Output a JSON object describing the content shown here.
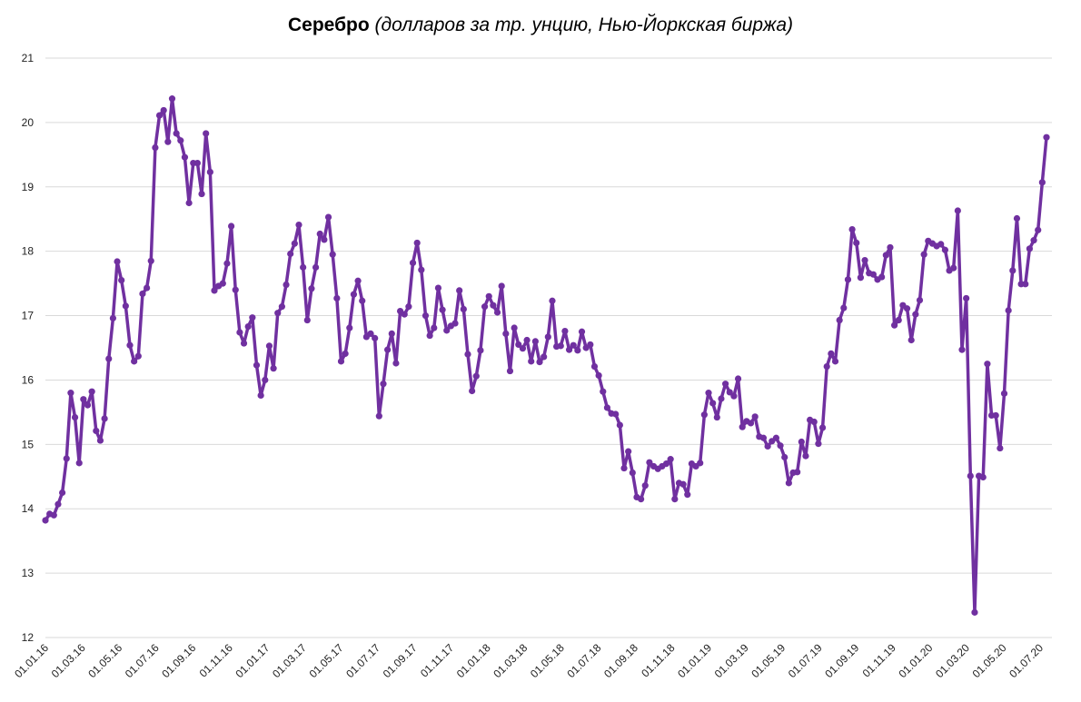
{
  "chart_data": {
    "type": "line",
    "title_bold": "Серебро",
    "title_italic": "(долларов за тр. унцию, Нью-Йоркская биржа)",
    "xlabel": "",
    "ylabel": "",
    "ylim": [
      12,
      21
    ],
    "yticks": [
      "12",
      "13",
      "14",
      "15",
      "16",
      "17",
      "18",
      "19",
      "20",
      "21"
    ],
    "xticks": [
      "01.01.16",
      "01.03.16",
      "01.05.16",
      "01.07.16",
      "01.09.16",
      "01.11.16",
      "01.01.17",
      "01.03.17",
      "01.05.17",
      "01.07.17",
      "01.09.17",
      "01.11.17",
      "01.01.18",
      "01.03.18",
      "01.05.18",
      "01.07.18",
      "01.09.18",
      "01.11.18",
      "01.01.19",
      "01.03.19",
      "01.05.19",
      "01.07.19",
      "01.09.19",
      "01.11.19",
      "01.01.20",
      "01.03.20",
      "01.05.20",
      "01.07.20"
    ],
    "grid": true,
    "series": [
      {
        "name": "Серебро",
        "color": "#7030a0",
        "values": [
          13.82,
          13.92,
          13.9,
          14.07,
          14.25,
          14.78,
          15.8,
          15.42,
          14.71,
          15.7,
          15.61,
          15.82,
          15.21,
          15.06,
          15.4,
          16.33,
          16.96,
          17.84,
          17.55,
          17.15,
          16.54,
          16.29,
          16.37,
          17.34,
          17.43,
          17.85,
          19.61,
          20.11,
          20.19,
          19.7,
          20.37,
          19.83,
          19.72,
          19.46,
          18.75,
          19.37,
          19.37,
          18.89,
          19.83,
          19.23,
          17.39,
          17.46,
          17.5,
          17.81,
          18.39,
          17.4,
          16.74,
          16.57,
          16.83,
          16.97,
          16.23,
          15.76,
          16.0,
          16.53,
          16.18,
          17.04,
          17.14,
          17.48,
          17.96,
          18.12,
          18.41,
          17.75,
          16.93,
          17.42,
          17.75,
          18.27,
          18.18,
          18.53,
          17.95,
          17.27,
          16.29,
          16.41,
          16.81,
          17.33,
          17.54,
          17.23,
          16.67,
          16.72,
          16.65,
          15.44,
          15.94,
          16.47,
          16.72,
          16.26,
          17.07,
          17.02,
          17.14,
          17.82,
          18.13,
          17.71,
          17.0,
          16.69,
          16.81,
          17.43,
          17.09,
          16.77,
          16.84,
          16.88,
          17.39,
          17.1,
          16.4,
          15.83,
          16.06,
          16.46,
          17.14,
          17.3,
          17.16,
          17.05,
          17.46,
          16.72,
          16.14,
          16.81,
          16.55,
          16.49,
          16.62,
          16.29,
          16.6,
          16.28,
          16.36,
          16.67,
          17.23,
          16.52,
          16.53,
          16.76,
          16.47,
          16.54,
          16.46,
          16.75,
          16.5,
          16.55,
          16.21,
          16.07,
          15.82,
          15.57,
          15.48,
          15.47,
          15.3,
          14.63,
          14.89,
          14.56,
          14.18,
          14.15,
          14.36,
          14.72,
          14.66,
          14.62,
          14.66,
          14.7,
          14.77,
          14.15,
          14.4,
          14.38,
          14.22,
          14.7,
          14.66,
          14.71,
          15.46,
          15.8,
          15.64,
          15.42,
          15.71,
          15.94,
          15.81,
          15.75,
          16.02,
          15.27,
          15.36,
          15.33,
          15.43,
          15.12,
          15.1,
          14.97,
          15.05,
          15.1,
          14.98,
          14.8,
          14.4,
          14.56,
          14.57,
          15.04,
          14.82,
          15.38,
          15.35,
          15.01,
          15.26,
          16.21,
          16.41,
          16.29,
          16.93,
          17.12,
          17.56,
          18.34,
          18.13,
          17.59,
          17.86,
          17.66,
          17.64,
          17.56,
          17.6,
          17.94,
          18.06,
          16.85,
          16.93,
          17.16,
          17.11,
          16.62,
          17.02,
          17.24,
          17.95,
          18.16,
          18.12,
          18.08,
          18.11,
          18.02,
          17.7,
          17.74,
          18.63,
          16.47,
          17.27,
          14.51,
          12.39,
          14.51,
          14.49,
          16.25,
          15.45,
          15.45,
          14.94,
          15.79,
          17.08,
          17.7,
          18.51,
          17.49,
          17.49,
          18.04,
          18.17,
          18.33,
          19.07,
          19.77
        ]
      }
    ]
  }
}
